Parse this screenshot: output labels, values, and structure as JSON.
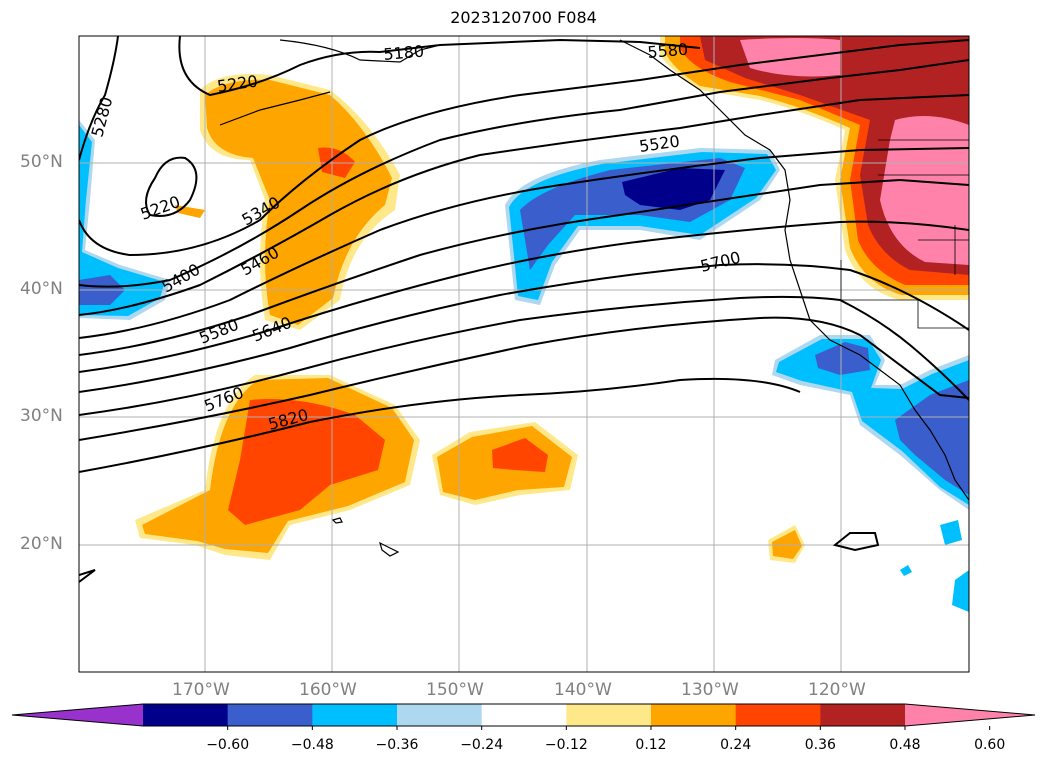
{
  "title": "2023120700 F084",
  "lat_labels": [
    "50°N",
    "40°N",
    "30°N",
    "20°N"
  ],
  "lon_labels": [
    "170°W",
    "160°W",
    "150°W",
    "140°W",
    "130°W",
    "120°W"
  ],
  "contour_labels": [
    "5280",
    "5220",
    "5180",
    "5220",
    "5340",
    "5400",
    "5460",
    "5520",
    "5580",
    "5640",
    "5700",
    "5760",
    "5820",
    "5580"
  ],
  "colorbar": {
    "ticks": [
      "−0.60",
      "−0.48",
      "−0.36",
      "−0.24",
      "−0.12",
      "0.12",
      "0.24",
      "0.36",
      "0.48",
      "0.60"
    ],
    "colors": [
      "#9932cc",
      "#00008b",
      "#3a5fcd",
      "#00bfff",
      "#add8f0",
      "#ffffff",
      "#ffe88a",
      "#ffa500",
      "#ff4500",
      "#b22222",
      "#ff82ab"
    ]
  }
}
